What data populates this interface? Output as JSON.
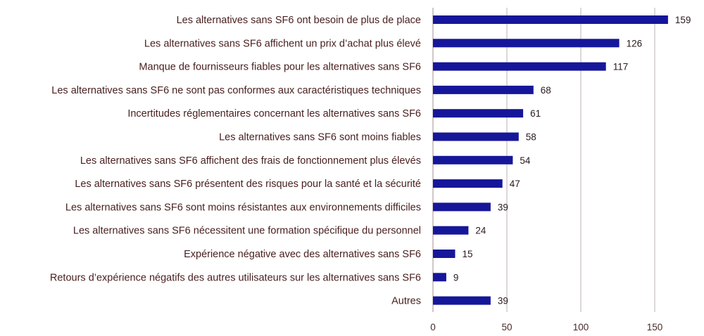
{
  "chart_data": {
    "type": "bar",
    "orientation": "horizontal",
    "title": "",
    "xlabel": "",
    "ylabel": "",
    "xlim": [
      0,
      170
    ],
    "xticks": [
      0,
      50,
      100,
      150
    ],
    "grid": true,
    "bar_color": "#16169a",
    "categories": [
      "Les alternatives sans SF6 ont besoin de plus de place",
      "Les alternatives sans SF6 affichent un prix d’achat plus élevé",
      "Manque de fournisseurs fiables pour les alternatives sans SF6",
      "Les alternatives sans SF6 ne sont pas conformes aux caractéristiques techniques",
      "Incertitudes réglementaires concernant les alternatives sans SF6",
      "Les alternatives sans SF6 sont moins fiables",
      "Les alternatives sans SF6 affichent des frais de fonctionnement plus élevés",
      "Les alternatives sans SF6 présentent des risques pour la santé et la sécurité",
      "Les alternatives sans SF6 sont moins résistantes aux environnements difficiles",
      "Les alternatives sans SF6 nécessitent une formation spécifique du personnel",
      "Expérience négative avec des alternatives sans SF6",
      "Retours d’expérience négatifs des autres utilisateurs sur les alternatives sans SF6",
      "Autres"
    ],
    "values": [
      159,
      126,
      117,
      68,
      61,
      58,
      54,
      47,
      39,
      24,
      15,
      9,
      39
    ]
  }
}
